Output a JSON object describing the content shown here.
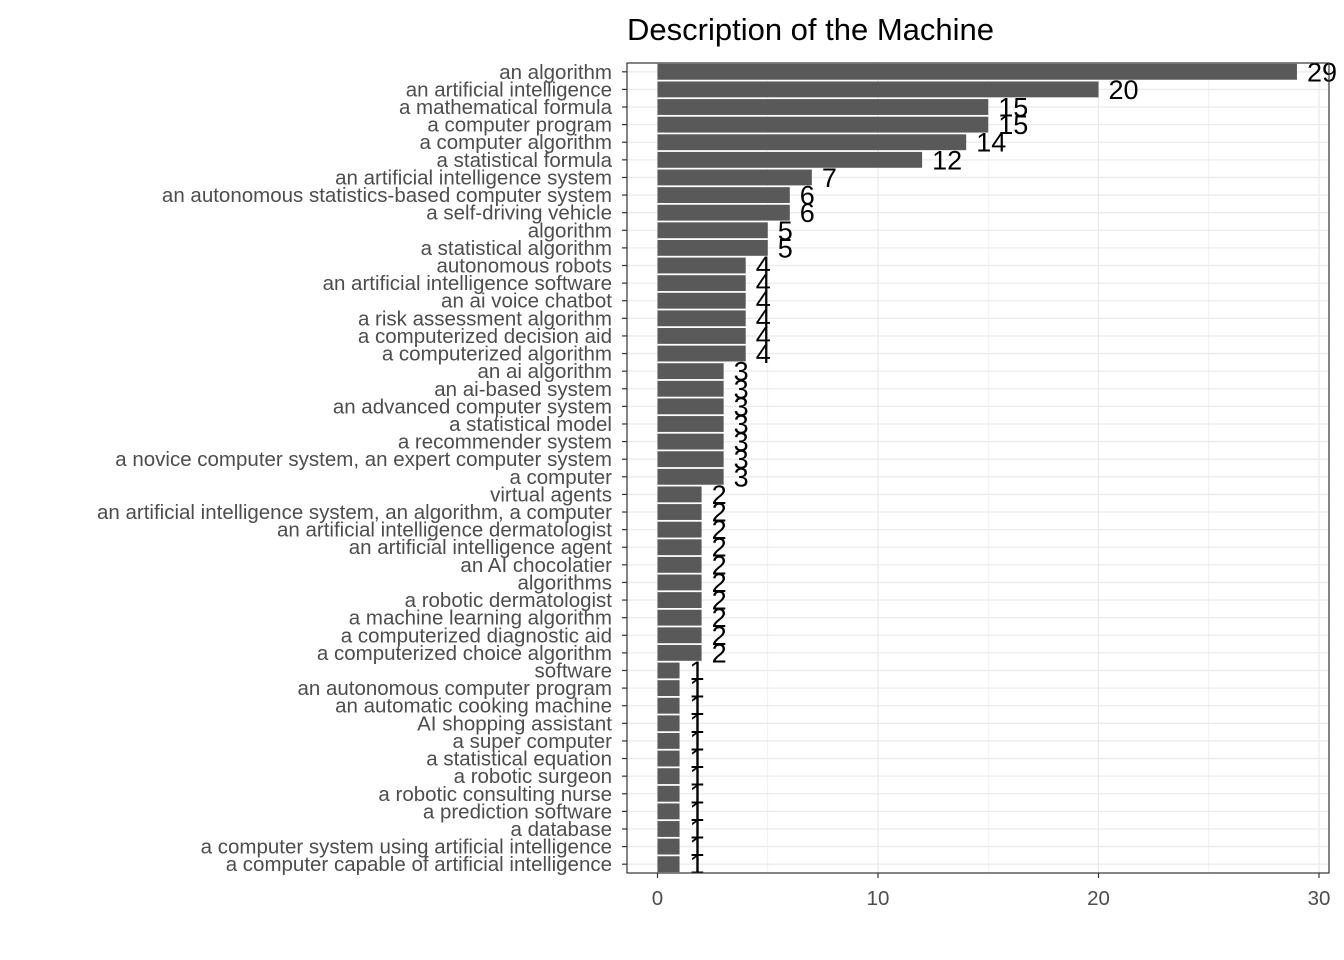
{
  "chart_data": {
    "type": "bar",
    "orientation": "horizontal",
    "title": "Description of the Machine",
    "xlabel": "",
    "ylabel": "",
    "xlim": [
      0,
      30
    ],
    "x_ticks": [
      0,
      10,
      20,
      30
    ],
    "grid": true,
    "legend": "none",
    "bar_color": "#595959",
    "categories": [
      "an algorithm",
      "an artificial intelligence",
      "a mathematical formula",
      "a computer program",
      "a computer algorithm",
      "a statistical formula",
      "an artificial intelligence system",
      "an autonomous statistics-based computer system",
      "a self-driving vehicle",
      "algorithm",
      "a statistical algorithm",
      "autonomous robots",
      "an artificial intelligence software",
      "an ai voice chatbot",
      "a risk assessment algorithm",
      "a computerized decision aid",
      "a computerized algorithm",
      "an ai algorithm",
      "an ai-based system",
      "an advanced computer system",
      "a statistical model",
      "a recommender system",
      "a novice computer system, an expert computer system",
      "a computer",
      "virtual agents",
      "an artificial intelligence system, an algorithm, a computer",
      "an artificial intelligence dermatologist",
      "an artificial intelligence agent",
      "an AI chocolatier",
      "algorithms",
      "a robotic dermatologist",
      "a machine learning algorithm",
      "a computerized diagnostic aid",
      "a computerized choice algorithm",
      "software",
      "an autonomous computer program",
      "an automatic cooking machine",
      "AI shopping assistant",
      "a super computer",
      "a statistical equation",
      "a robotic surgeon",
      "a robotic consulting nurse",
      "a prediction software",
      "a database",
      "a computer system using artificial intelligence",
      "a computer capable of artificial intelligence"
    ],
    "values": [
      29,
      20,
      15,
      15,
      14,
      12,
      7,
      6,
      6,
      5,
      5,
      4,
      4,
      4,
      4,
      4,
      4,
      3,
      3,
      3,
      3,
      3,
      3,
      3,
      2,
      2,
      2,
      2,
      2,
      2,
      2,
      2,
      2,
      2,
      1,
      1,
      1,
      1,
      1,
      1,
      1,
      1,
      1,
      1,
      1,
      1
    ]
  }
}
